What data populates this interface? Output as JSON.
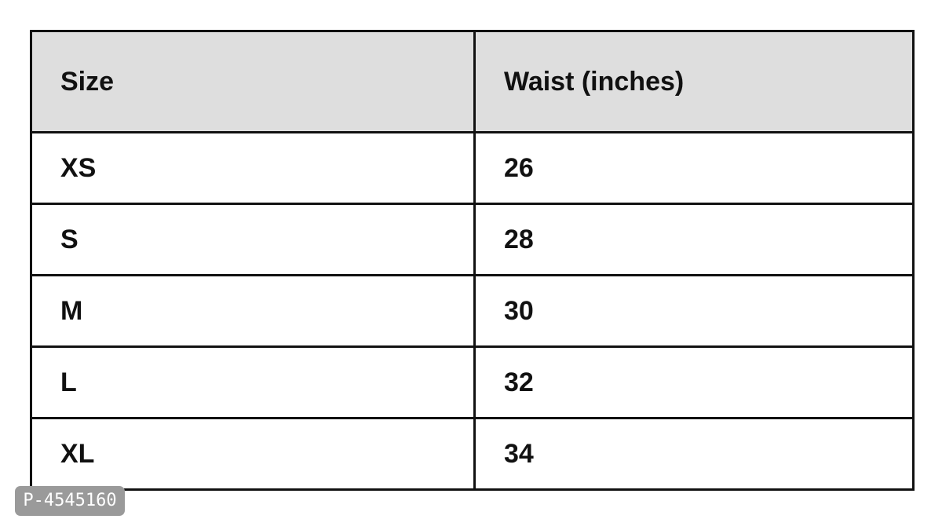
{
  "table": {
    "headers": [
      "Size",
      "Waist (inches)"
    ],
    "rows": [
      [
        "XS",
        "26"
      ],
      [
        "S",
        "28"
      ],
      [
        "M",
        "30"
      ],
      [
        "L",
        "32"
      ],
      [
        "XL",
        "34"
      ]
    ]
  },
  "watermark": "P-4545160",
  "colors": {
    "header_bg": "#dedede",
    "border": "#111111",
    "watermark_bg": "#9a9a9a"
  }
}
